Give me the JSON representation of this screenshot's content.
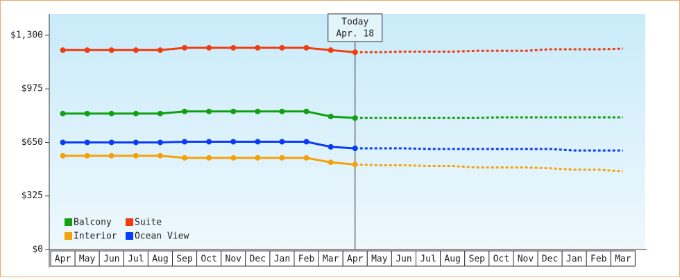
{
  "chart_data": {
    "type": "line",
    "categories": [
      "Apr",
      "May",
      "Jun",
      "Jul",
      "Aug",
      "Sep",
      "Oct",
      "Nov",
      "Dec",
      "Jan",
      "Feb",
      "Mar",
      "Apr",
      "May",
      "Jun",
      "Jul",
      "Aug",
      "Sep",
      "Oct",
      "Nov",
      "Dec",
      "Jan",
      "Feb",
      "Mar"
    ],
    "series": [
      {
        "name": "Balcony",
        "color": "#12a012",
        "values": [
          825,
          825,
          825,
          825,
          825,
          838,
          838,
          838,
          838,
          838,
          838,
          807,
          798,
          798,
          798,
          798,
          798,
          798,
          802,
          802,
          802,
          802,
          802,
          802
        ]
      },
      {
        "name": "Suite",
        "color": "#f03c10",
        "values": [
          1210,
          1210,
          1210,
          1210,
          1210,
          1224,
          1224,
          1224,
          1224,
          1224,
          1224,
          1210,
          1197,
          1197,
          1201,
          1201,
          1201,
          1206,
          1206,
          1206,
          1215,
          1215,
          1215,
          1219
        ]
      },
      {
        "name": "Interior",
        "color": "#f5a20a",
        "values": [
          569,
          569,
          569,
          569,
          569,
          556,
          556,
          556,
          556,
          556,
          556,
          529,
          516,
          511,
          511,
          507,
          507,
          498,
          498,
          498,
          493,
          484,
          484,
          475
        ]
      },
      {
        "name": "Ocean View",
        "color": "#0a3cf5",
        "values": [
          650,
          650,
          650,
          650,
          650,
          654,
          654,
          654,
          654,
          654,
          654,
          623,
          614,
          614,
          614,
          610,
          610,
          610,
          610,
          610,
          610,
          601,
          601,
          601
        ]
      }
    ],
    "ylim": [
      0,
      1430
    ],
    "yticks": [
      {
        "value": 0,
        "label": "$0"
      },
      {
        "value": 325,
        "label": "$325"
      },
      {
        "value": 650,
        "label": "$650"
      },
      {
        "value": 975,
        "label": "$975"
      },
      {
        "value": 1300,
        "label": "$1,300"
      }
    ],
    "today_category_index": 12,
    "annotation": [
      "Today",
      "Apr. 18"
    ]
  }
}
